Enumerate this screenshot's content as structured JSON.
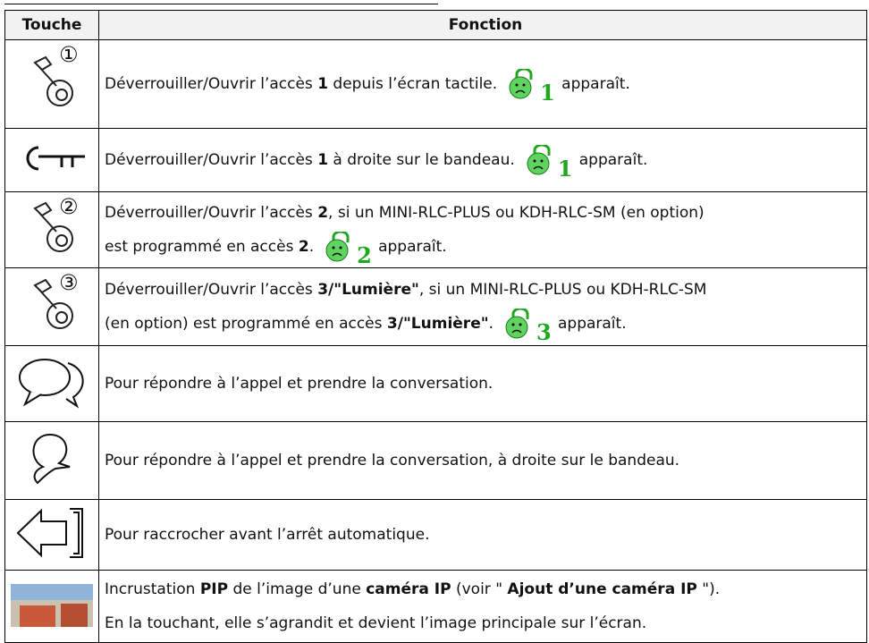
{
  "header": {
    "col1": "Touche",
    "col2": "Fonction"
  },
  "rows": [
    {
      "key": "①",
      "lines": [
        [
          "Déverrouiller/Ouvrir l’accès ",
          "1",
          " depuis l’écran tactile.",
          "1",
          "apparaît."
        ]
      ]
    },
    {
      "lines": [
        [
          "Déverrouiller/Ouvrir l’accès ",
          "1",
          " à droite sur le bandeau.",
          "1",
          "apparaît."
        ]
      ]
    },
    {
      "key": "②",
      "lines": [
        [
          "Déverrouiller/Ouvrir l’accès ",
          "2",
          ", si un MINI-RLC-PLUS ou KDH-RLC-SM (en option)"
        ],
        [
          "est programmé en accès ",
          "2",
          ".",
          "2",
          "apparaît."
        ]
      ]
    },
    {
      "key": "③",
      "lines": [
        [
          "Déverrouiller/Ouvrir l’accès ",
          "3/\"Lumière\"",
          ", si un MINI-RLC-PLUS ou KDH-RLC-SM"
        ],
        [
          "(en option) est programmé en accès ",
          "3/\"Lumière\"",
          ".",
          "3",
          "apparaît."
        ]
      ]
    },
    {
      "lines": [
        [
          "Pour répondre à l’appel et prendre la conversation."
        ]
      ]
    },
    {
      "lines": [
        [
          "Pour répondre à l’appel et prendre la conversation, à droite sur le bandeau."
        ]
      ]
    },
    {
      "lines": [
        [
          "Pour raccrocher avant l’arrêt automatique."
        ]
      ]
    },
    {
      "lines": [
        [
          "Incrustation ",
          "PIP",
          " de l’image d’une ",
          "caméra IP",
          " (voir \" ",
          "Ajout d’une caméra IP",
          " \")."
        ],
        [
          "En la touchant, elle s’agrandit et devient l’image principale sur l’écran."
        ]
      ]
    }
  ]
}
